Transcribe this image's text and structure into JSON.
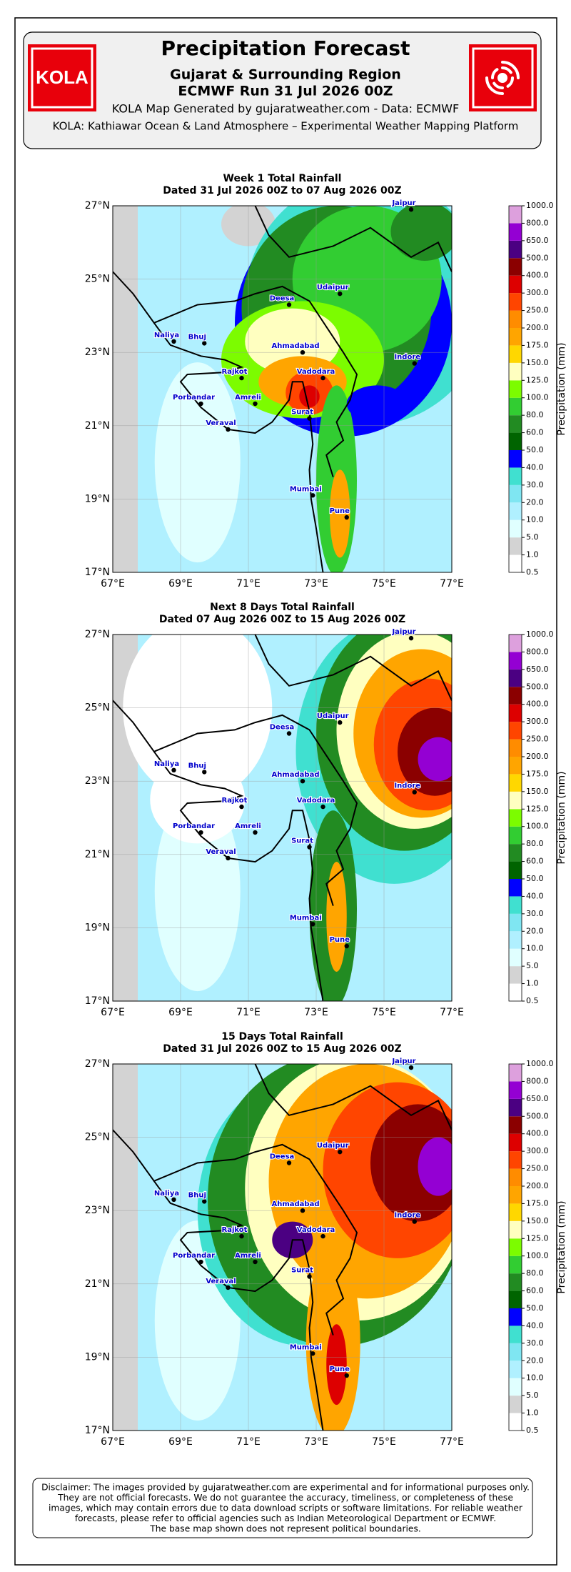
{
  "header": {
    "logo_left": "KOLA",
    "title": "Precipitation Forecast",
    "subtitle": "Gujarat & Surrounding Region",
    "run": "ECMWF Run 31 Jul 2026 00Z",
    "credit": "KOLA Map Generated by gujaratweather.com - Data: ECMWF",
    "platform": "KOLA: Kathiawar Ocean & Land Atmosphere – Experimental Weather Mapping Platform"
  },
  "maps": [
    {
      "title": "Week 1 Total Rainfall",
      "dates": "Dated 31 Jul 2026 00Z to 07 Aug 2026 00Z"
    },
    {
      "title": "Next 8 Days Total Rainfall",
      "dates": "Dated 07 Aug 2026 00Z to 15 Aug 2026 00Z"
    },
    {
      "title": "15 Days Total Rainfall",
      "dates": "Dated 31 Jul 2026 00Z to 15 Aug 2026 00Z"
    }
  ],
  "axes": {
    "lon_ticks": [
      "67°E",
      "69°E",
      "71°E",
      "73°E",
      "75°E",
      "77°E"
    ],
    "lat_ticks": [
      "17°N",
      "19°N",
      "21°N",
      "23°N",
      "25°N",
      "27°N"
    ]
  },
  "cities": [
    "Jaipur",
    "Deesa",
    "Udaipur",
    "Naliya",
    "Bhuj",
    "Ahmadabad",
    "Indore",
    "Rajkot",
    "Vadodara",
    "Porbandar",
    "Amreli",
    "Veraval",
    "Surat",
    "Mumbai",
    "Pune"
  ],
  "colorbar": {
    "label": "Precipitation (mm)",
    "ticks": [
      0.5,
      {
        "value": 1,
        "label": "1.0"
      },
      {
        "value": 5,
        "label": "5.0"
      },
      {
        "value": 10,
        "label": "10.0"
      },
      {
        "value": 20,
        "label": "20.0"
      },
      {
        "value": 30,
        "label": "30.0"
      },
      {
        "value": 40,
        "label": "40.0"
      },
      {
        "value": 50,
        "label": "50.0"
      },
      {
        "value": 60,
        "label": "60.0"
      },
      {
        "value": 80,
        "label": "80.0"
      },
      {
        "value": 100,
        "label": "100.0"
      },
      {
        "value": 125,
        "label": "125.0"
      },
      {
        "value": 150,
        "label": "150.0"
      },
      {
        "value": 175,
        "label": "175.0"
      },
      {
        "value": 200,
        "label": "200.0"
      },
      {
        "value": 250,
        "label": "250.0"
      },
      {
        "value": 300,
        "label": "300.0"
      },
      {
        "value": 400,
        "label": "400.0"
      },
      {
        "value": 500,
        "label": "500.0"
      },
      {
        "value": 650,
        "label": "650.0"
      },
      {
        "value": 800,
        "label": "800.0"
      },
      {
        "value": 1000,
        "label": "1000.0"
      }
    ],
    "colors": [
      "#ffffff",
      "#d3d3d3",
      "#e0ffff",
      "#b0f0ff",
      "#7fe6f2",
      "#40e0d0",
      "#0000ff",
      "#006400",
      "#228b22",
      "#32cd32",
      "#7cfc00",
      "#ffffc0",
      "#ffd700",
      "#ffa500",
      "#ff8c00",
      "#ff4500",
      "#dd0000",
      "#8b0000",
      "#4b0082",
      "#9400d3",
      "#dda0dd"
    ]
  },
  "disclaimer": [
    "Disclaimer: The images provided by gujaratweather.com are experimental and for informational purposes only.",
    "They are not official forecasts. We do not guarantee the accuracy, timeliness, or completeness of these",
    "images, which may contain errors due to data download scripts or software limitations. For reliable weather",
    "forecasts, please refer to official agencies such as Indian Meteorological Department or ECMWF.",
    "The base map shown does not represent political boundaries."
  ]
}
